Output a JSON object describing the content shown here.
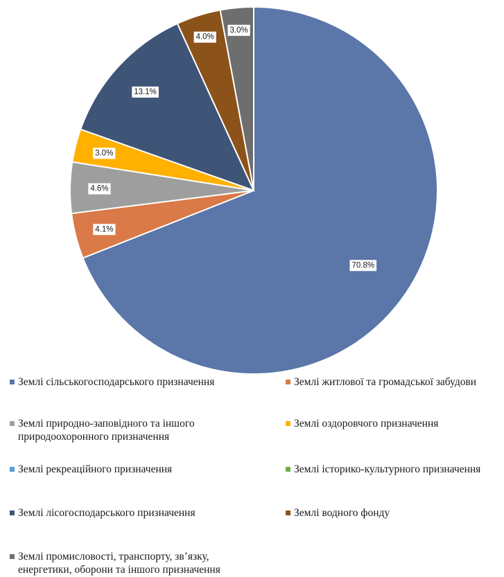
{
  "chart_data": {
    "type": "pie",
    "start_angle_deg": 0,
    "direction": "clockwise",
    "data_label_format": "percent_one_decimal",
    "legend_position": "bottom",
    "slices": [
      {
        "label": "Землі сільськогосподарського призначення",
        "value": 70.8,
        "display": "70.8%",
        "color": "#5B76A8"
      },
      {
        "label": "Землі житлової та громадської забудови",
        "value": 4.1,
        "display": "4.1%",
        "color": "#D97A48"
      },
      {
        "label": "Землі природно-заповідного та іншого\nприродоохоронного призначення",
        "value": 4.6,
        "display": "4.6%",
        "color": "#9E9E9E"
      },
      {
        "label": "Землі оздоровчого призначення",
        "value": 3.0,
        "display": "3.0%",
        "color": "#FFB000"
      },
      {
        "label": "Землі рекреаційного призначення",
        "value": 0,
        "display": "",
        "color": "#5B9BD5"
      },
      {
        "label": "Землі історико-культурного призначення",
        "value": 0,
        "display": "",
        "color": "#70AD47"
      },
      {
        "label": "Землі лісогосподарського призначення",
        "value": 13.1,
        "display": "13.1%",
        "color": "#3E5578"
      },
      {
        "label": "Землі водного фонду",
        "value": 4.0,
        "display": "4.0%",
        "color": "#8B5219"
      },
      {
        "label": "Землі промисловості, транспорту, зв’язку,\nенергетики, оборони та іншого призначення",
        "value": 3.0,
        "display": "3.0%",
        "color": "#6E6E6E"
      }
    ]
  }
}
